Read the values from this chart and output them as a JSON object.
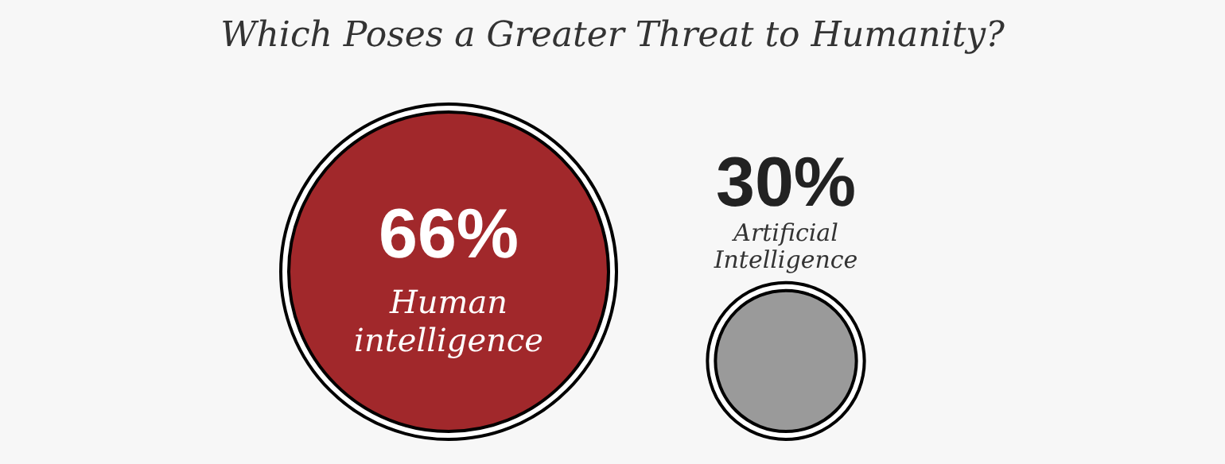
{
  "chart_data": {
    "type": "other",
    "title": "Which Poses a Greater Threat to Humanity?",
    "categories": [
      "Human intelligence",
      "Artificial Intelligence"
    ],
    "values": [
      66,
      30
    ],
    "value_labels": [
      "66%",
      "30%"
    ],
    "colors": [
      "#a1282b",
      "#9a9a9a"
    ]
  }
}
